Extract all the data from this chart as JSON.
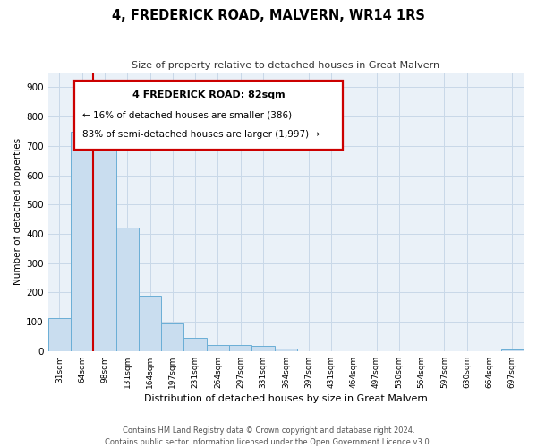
{
  "title": "4, FREDERICK ROAD, MALVERN, WR14 1RS",
  "subtitle": "Size of property relative to detached houses in Great Malvern",
  "xlabel": "Distribution of detached houses by size in Great Malvern",
  "ylabel": "Number of detached properties",
  "bar_labels": [
    "31sqm",
    "64sqm",
    "98sqm",
    "131sqm",
    "164sqm",
    "197sqm",
    "231sqm",
    "264sqm",
    "297sqm",
    "331sqm",
    "364sqm",
    "397sqm",
    "431sqm",
    "464sqm",
    "497sqm",
    "530sqm",
    "564sqm",
    "597sqm",
    "630sqm",
    "664sqm",
    "697sqm"
  ],
  "bar_values": [
    113,
    748,
    752,
    420,
    190,
    93,
    45,
    22,
    22,
    18,
    10,
    0,
    0,
    0,
    0,
    0,
    0,
    0,
    0,
    0,
    5
  ],
  "bar_color": "#c9ddef",
  "bar_edge_color": "#6aaed6",
  "grid_color": "#c8d8e8",
  "bg_color": "#eaf1f8",
  "property_line_color": "#cc0000",
  "annotation_title": "4 FREDERICK ROAD: 82sqm",
  "annotation_line1": "← 16% of detached houses are smaller (386)",
  "annotation_line2": "83% of semi-detached houses are larger (1,997) →",
  "annotation_box_color": "#cc0000",
  "ylim": [
    0,
    950
  ],
  "yticks": [
    0,
    100,
    200,
    300,
    400,
    500,
    600,
    700,
    800,
    900
  ],
  "footer_line1": "Contains HM Land Registry data © Crown copyright and database right 2024.",
  "footer_line2": "Contains public sector information licensed under the Open Government Licence v3.0."
}
